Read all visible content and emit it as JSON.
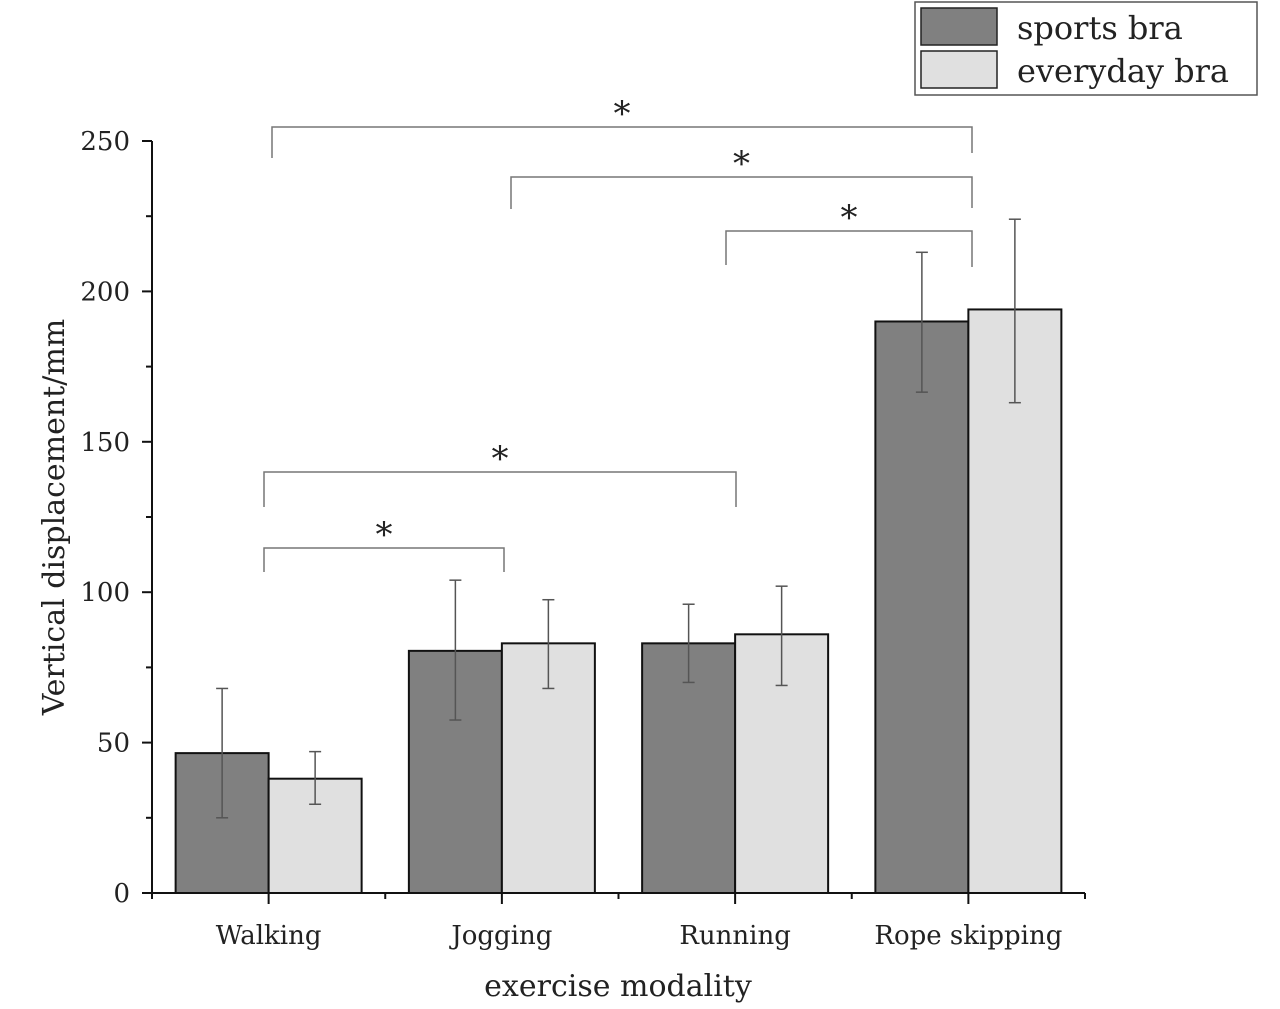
{
  "chart_data": {
    "type": "bar",
    "xlabel": "exercise modality",
    "ylabel": "Vertical displacement/mm",
    "ylim": [
      0,
      250
    ],
    "yticks": [
      0,
      50,
      100,
      150,
      200,
      250
    ],
    "categories": [
      "Walking",
      "Jogging",
      "Running",
      "Rope skipping"
    ],
    "series": [
      {
        "name": "sports bra",
        "color": "#808080",
        "values": [
          46.5,
          80.5,
          83.0,
          190.0
        ],
        "err_upper": [
          68.0,
          104.0,
          96.0,
          213.0
        ],
        "err_lower": [
          25.0,
          57.5,
          70.0,
          166.5
        ]
      },
      {
        "name": "everyday bra",
        "color": "#e0e0e0",
        "values": [
          38.0,
          83.0,
          86.0,
          194.0
        ],
        "err_upper": [
          47.0,
          97.5,
          102.0,
          224.0
        ],
        "err_lower": [
          29.5,
          68.0,
          69.0,
          163.0
        ]
      }
    ],
    "significance": [
      {
        "from": "Walking",
        "to": "Rope skipping",
        "label": "*"
      },
      {
        "from": "Jogging",
        "to": "Rope skipping",
        "label": "*"
      },
      {
        "from": "Running",
        "to": "Rope skipping",
        "label": "*"
      },
      {
        "from": "Walking",
        "to": "Running",
        "label": "*"
      },
      {
        "from": "Walking",
        "to": "Jogging",
        "label": "*"
      }
    ],
    "legend_position": "top-right",
    "grid": false
  }
}
